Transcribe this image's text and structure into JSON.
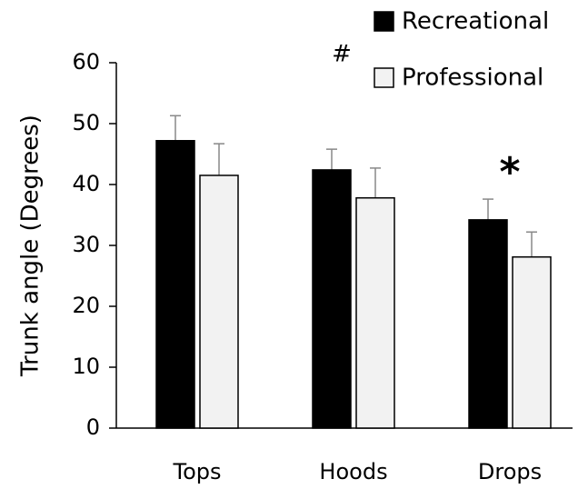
{
  "chart_data": {
    "type": "bar",
    "y_label": "Trunk angle (Degrees)",
    "categories": [
      "Tops",
      "Hoods",
      "Drops"
    ],
    "series": [
      {
        "name": "Recreational",
        "color": "#000000",
        "values": [
          47.2,
          42.4,
          34.2
        ],
        "errors": [
          4.1,
          3.4,
          3.4
        ]
      },
      {
        "name": "Professional",
        "color": "#f2f2f2",
        "values": [
          41.5,
          37.8,
          28.1
        ],
        "errors": [
          5.2,
          4.9,
          4.1
        ]
      }
    ],
    "ylim": [
      0,
      60
    ],
    "yticks": [
      0,
      10,
      20,
      30,
      40,
      50,
      60
    ],
    "annotations": [
      "#",
      "*"
    ],
    "legend": "top-right"
  }
}
